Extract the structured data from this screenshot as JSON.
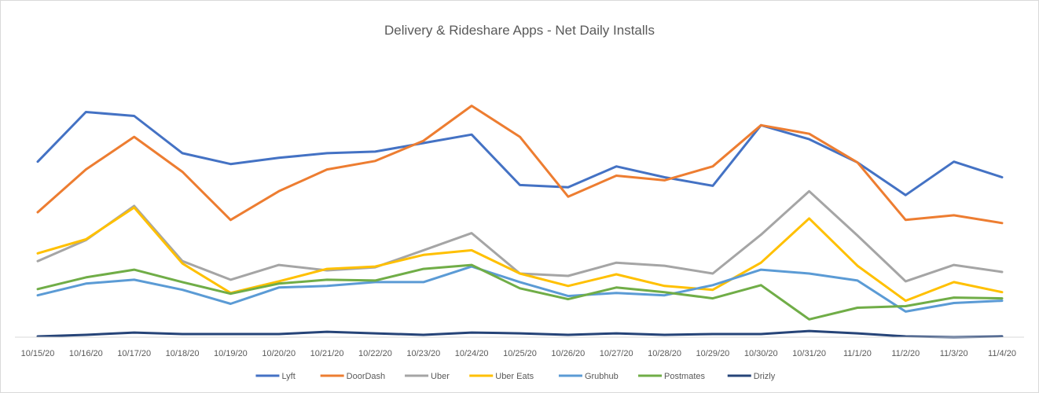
{
  "chart_data": {
    "type": "line",
    "title": "Delivery & Rideshare Apps - Net Daily Installs",
    "xlabel": "",
    "ylabel": "",
    "ylim": [
      0,
      330
    ],
    "grid": false,
    "legend_position": "bottom",
    "categories": [
      "10/15/20",
      "10/16/20",
      "10/17/20",
      "10/18/20",
      "10/19/20",
      "10/20/20",
      "10/21/20",
      "10/22/20",
      "10/23/20",
      "10/24/20",
      "10/25/20",
      "10/26/20",
      "10/27/20",
      "10/28/20",
      "10/29/20",
      "10/30/20",
      "10/31/20",
      "11/1/20",
      "11/2/20",
      "11/3/20",
      "11/4/20"
    ],
    "series": [
      {
        "name": "Lyft",
        "color": "#4472c4",
        "values": [
          226,
          290,
          285,
          237,
          223,
          231,
          237,
          239,
          250,
          261,
          196,
          193,
          220,
          206,
          195,
          273,
          255,
          225,
          183,
          226,
          206
        ]
      },
      {
        "name": "DoorDash",
        "color": "#ed7d31",
        "values": [
          161,
          216,
          258,
          213,
          151,
          188,
          216,
          227,
          253,
          298,
          258,
          181,
          208,
          202,
          220,
          273,
          262,
          225,
          151,
          157,
          147
        ]
      },
      {
        "name": "Uber",
        "color": "#a5a5a5",
        "values": [
          98,
          125,
          169,
          98,
          74,
          93,
          86,
          90,
          112,
          134,
          82,
          79,
          96,
          92,
          82,
          132,
          188,
          131,
          72,
          93,
          84
        ]
      },
      {
        "name": "Uber Eats",
        "color": "#ffc000",
        "values": [
          108,
          126,
          167,
          95,
          57,
          72,
          88,
          91,
          106,
          112,
          82,
          66,
          81,
          66,
          61,
          96,
          153,
          92,
          47,
          71,
          58
        ]
      },
      {
        "name": "Grubhub",
        "color": "#5b9bd5",
        "values": [
          54,
          69,
          74,
          61,
          43,
          64,
          66,
          71,
          71,
          91,
          71,
          53,
          57,
          54,
          67,
          87,
          82,
          73,
          33,
          44,
          47
        ]
      },
      {
        "name": "Postmates",
        "color": "#70ad47",
        "values": [
          62,
          77,
          87,
          71,
          56,
          69,
          74,
          73,
          88,
          93,
          63,
          49,
          64,
          58,
          50,
          67,
          23,
          38,
          40,
          51,
          50
        ]
      },
      {
        "name": "Drizly",
        "color": "#264478",
        "values": [
          1,
          3,
          6,
          4,
          4,
          4,
          7,
          5,
          3,
          6,
          5,
          3,
          5,
          3,
          4,
          4,
          8,
          5,
          1,
          0,
          1
        ]
      }
    ]
  }
}
